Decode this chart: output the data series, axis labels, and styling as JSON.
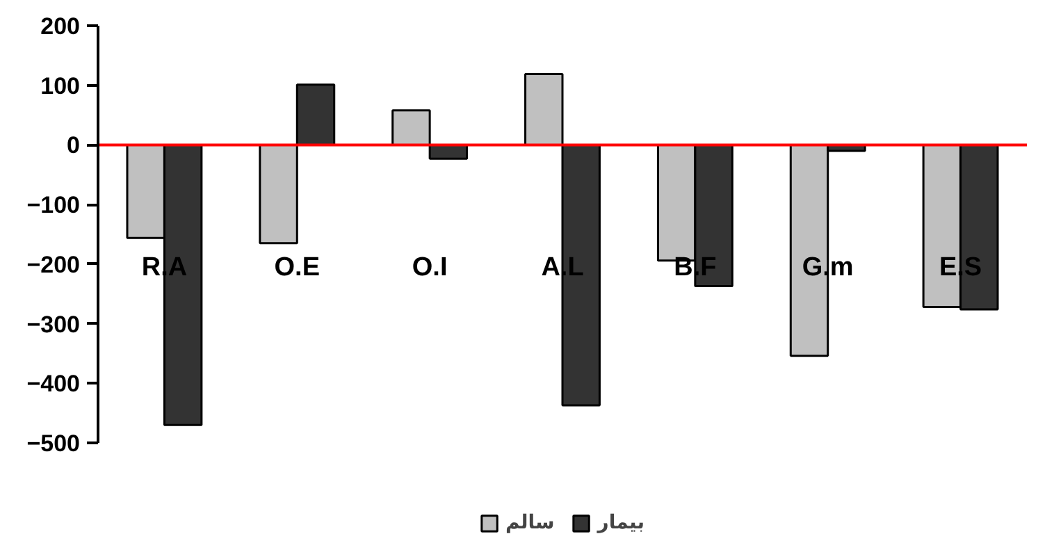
{
  "chart_data": {
    "type": "bar",
    "categories": [
      "R.A",
      "O.E",
      "O.I",
      "A.L",
      "B.F",
      "G.m",
      "E.S"
    ],
    "series": [
      {
        "name": "سالم",
        "color": "#c0c0c0",
        "values": [
          -156,
          -165,
          58,
          119,
          -194,
          -354,
          -272
        ]
      },
      {
        "name": "بيمار",
        "color": "#333333",
        "values": [
          -470,
          101,
          -23,
          -437,
          -237,
          -10,
          -276
        ]
      }
    ],
    "ylim": [
      -500,
      200
    ],
    "yticks": [
      -500,
      -400,
      -300,
      -200,
      -100,
      0,
      100,
      200
    ],
    "grid": false,
    "legend": "bottom",
    "ref_lines": [
      {
        "axis": "y",
        "value": 0,
        "color": "#ff0000"
      }
    ]
  }
}
